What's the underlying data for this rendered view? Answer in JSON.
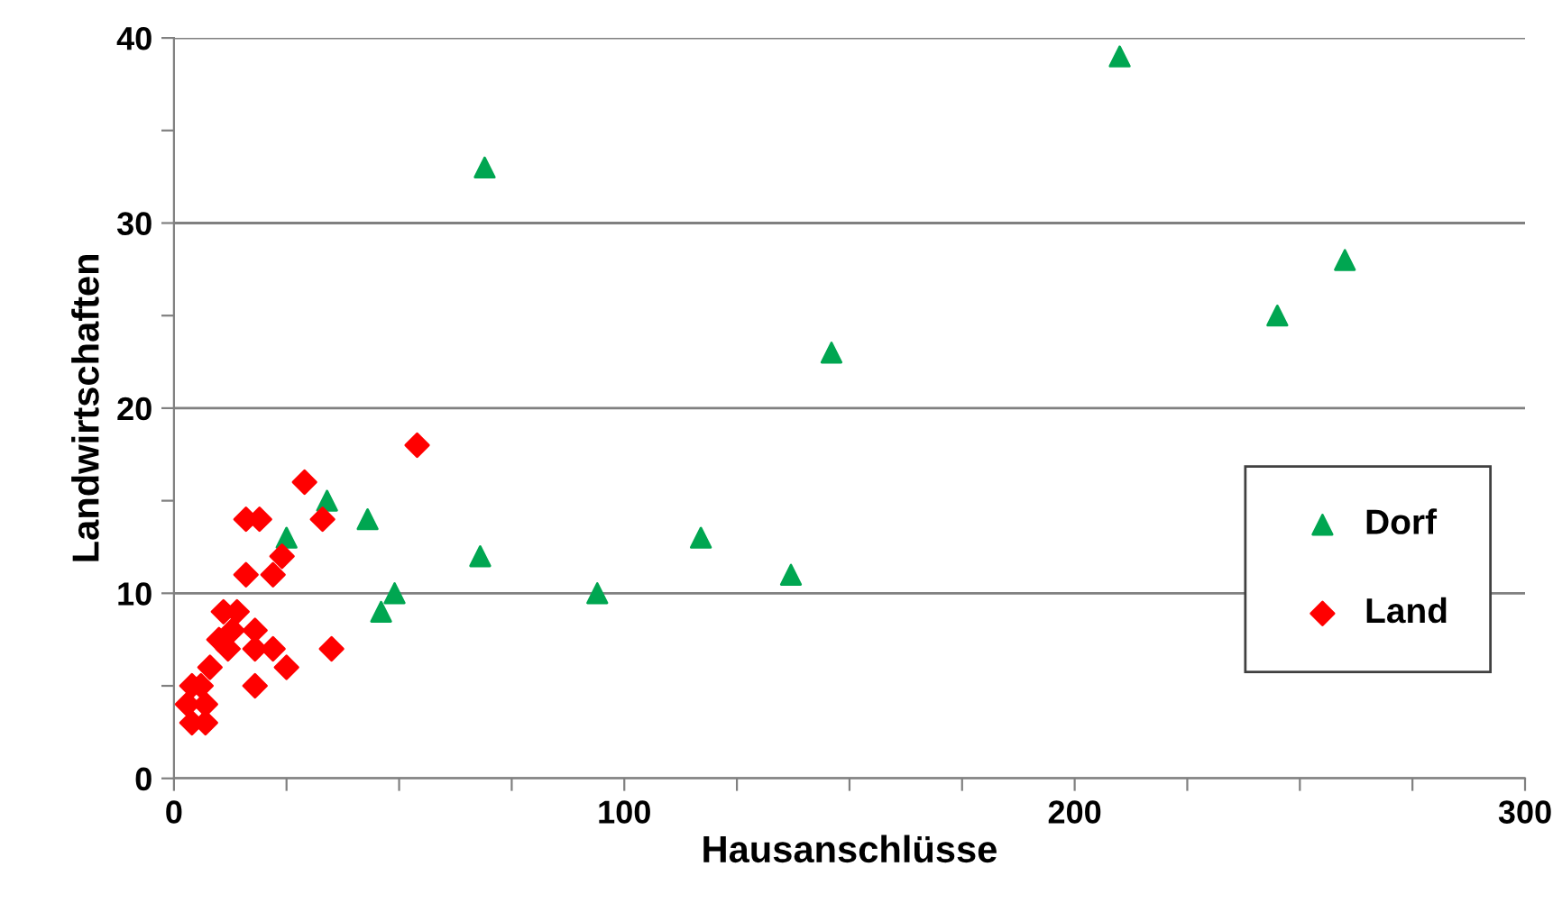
{
  "chart_data": {
    "type": "scatter",
    "xlabel": "Hausanschlüsse",
    "ylabel": "Landwirtschaften",
    "xlim": [
      0,
      300
    ],
    "xticks": [
      0,
      {
        "value": 25,
        "label": null
      },
      100,
      {
        "value": 50,
        "label": null
      },
      {
        "value": 75,
        "label": null
      },
      {
        "value": 125,
        "label": null
      },
      {
        "value": 150,
        "label": null
      },
      {
        "value": 175,
        "label": null
      },
      200,
      {
        "value": 225,
        "label": null
      },
      {
        "value": 250,
        "label": null
      },
      {
        "value": 275,
        "label": null
      },
      300
    ],
    "ylim": [
      0,
      40
    ],
    "yticks": [
      0,
      {
        "value": 5,
        "label": null
      },
      10,
      {
        "value": 15,
        "label": null
      },
      20,
      {
        "value": 25,
        "label": null
      },
      30,
      {
        "value": 35,
        "label": null
      },
      40
    ],
    "grid": "y",
    "legend": "bottom right",
    "series": [
      {
        "name": "Dorf",
        "color": "#00a651",
        "marker": "triangle",
        "x": [
          25,
          34,
          43,
          46,
          49,
          68,
          69,
          94,
          117,
          137,
          146,
          210,
          245,
          260
        ],
        "values": [
          13,
          15,
          14,
          9,
          10,
          12,
          33,
          10,
          13,
          11,
          23,
          39,
          25,
          28
        ]
      },
      {
        "name": "Land",
        "color": "#ff0000",
        "marker": "diamond",
        "x": [
          54,
          29,
          16,
          19,
          33,
          24,
          16,
          22,
          11,
          14,
          18,
          10,
          13,
          12,
          18,
          22,
          35,
          25,
          18,
          4,
          7,
          3,
          4,
          7,
          8,
          6
        ],
        "values": [
          18,
          16,
          14,
          14,
          14,
          12,
          11,
          11,
          9,
          9,
          8,
          7.5,
          8,
          7,
          7,
          7,
          7,
          6,
          5,
          5,
          4,
          4,
          3,
          3,
          6,
          5
        ]
      }
    ]
  }
}
